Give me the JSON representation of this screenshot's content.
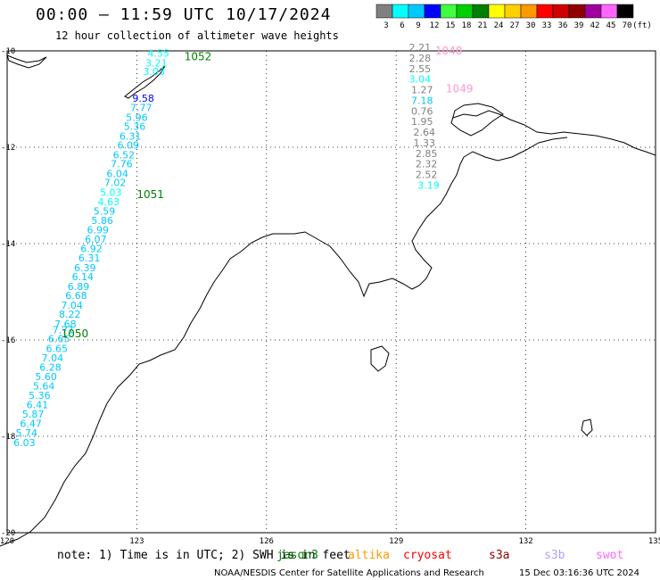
{
  "title": "00:00 — 11:59 UTC 10/17/2024",
  "subtitle": "12 hour collection of altimeter wave heights",
  "colorbar": {
    "unit": "(ft)",
    "bins": [
      {
        "label": "3",
        "color": "#808080"
      },
      {
        "label": "6",
        "color": "#00ffff"
      },
      {
        "label": "9",
        "color": "#00c8ff"
      },
      {
        "label": "12",
        "color": "#0000ff"
      },
      {
        "label": "15",
        "color": "#40ff40"
      },
      {
        "label": "18",
        "color": "#00d000"
      },
      {
        "label": "21",
        "color": "#008000"
      },
      {
        "label": "24",
        "color": "#ffff00"
      },
      {
        "label": "27",
        "color": "#ffd000"
      },
      {
        "label": "30",
        "color": "#ff9900"
      },
      {
        "label": "33",
        "color": "#ff0000"
      },
      {
        "label": "36",
        "color": "#d00000"
      },
      {
        "label": "39",
        "color": "#900000"
      },
      {
        "label": "42",
        "color": "#a000a0"
      },
      {
        "label": "45",
        "color": "#ff66ff"
      },
      {
        "label": "70",
        "color": "#000000"
      }
    ]
  },
  "axes": {
    "lon_ticks": [
      "120",
      "123",
      "126",
      "129",
      "132",
      "135"
    ],
    "lat_ticks": [
      "-10",
      "-12",
      "-14",
      "-16",
      "-18",
      "-20"
    ],
    "lon_range": [
      120,
      135
    ],
    "lat_range": [
      -20,
      -10
    ]
  },
  "pass_labels": [
    {
      "text": "1052",
      "color": "#008000",
      "lon": 124.1,
      "lat": -10.12
    },
    {
      "text": "1051",
      "color": "#008000",
      "lon": 123.0,
      "lat": -12.98
    },
    {
      "text": "1050",
      "color": "#008000",
      "lon": 121.25,
      "lat": -15.87
    },
    {
      "text": "1048",
      "color": "#ff99cc",
      "lon": 129.9,
      "lat": -10.0
    },
    {
      "text": "1049",
      "color": "#ff99cc",
      "lon": 130.15,
      "lat": -10.79
    }
  ],
  "tracks": [
    {
      "name": "west-pass",
      "points": [
        {
          "value": "4.55",
          "color": "#00ffff",
          "lon": 123.5,
          "lat": -10.12
        },
        {
          "value": "3.21",
          "color": "#00ffff",
          "lon": 123.45,
          "lat": -10.32
        },
        {
          "value": "3.03",
          "color": "#00ffff",
          "lon": 123.4,
          "lat": -10.5
        },
        {
          "value": "9.58",
          "color": "#0000ff",
          "lon": 123.15,
          "lat": -11.06
        },
        {
          "value": "7.77",
          "color": "#00c8ff",
          "lon": 123.1,
          "lat": -11.25
        },
        {
          "value": "5.96",
          "color": "#00c8ff",
          "lon": 123.0,
          "lat": -11.45
        },
        {
          "value": "5.36",
          "color": "#00c8ff",
          "lon": 122.95,
          "lat": -11.64
        },
        {
          "value": "6.31",
          "color": "#00c8ff",
          "lon": 122.85,
          "lat": -11.84
        },
        {
          "value": "6.09",
          "color": "#00c8ff",
          "lon": 122.8,
          "lat": -12.03
        },
        {
          "value": "6.52",
          "color": "#00c8ff",
          "lon": 122.7,
          "lat": -12.23
        },
        {
          "value": "7.76",
          "color": "#00c8ff",
          "lon": 122.65,
          "lat": -12.42
        },
        {
          "value": "6.04",
          "color": "#00c8ff",
          "lon": 122.55,
          "lat": -12.62
        },
        {
          "value": "7.02",
          "color": "#00c8ff",
          "lon": 122.5,
          "lat": -12.81
        },
        {
          "value": "5.03",
          "color": "#00ffff",
          "lon": 122.4,
          "lat": -13.01
        },
        {
          "value": "4.63",
          "color": "#00ffff",
          "lon": 122.35,
          "lat": -13.2
        },
        {
          "value": "5.59",
          "color": "#00c8ff",
          "lon": 122.25,
          "lat": -13.4
        },
        {
          "value": "5.86",
          "color": "#00c8ff",
          "lon": 122.2,
          "lat": -13.59
        },
        {
          "value": "6.99",
          "color": "#00c8ff",
          "lon": 122.1,
          "lat": -13.79
        },
        {
          "value": "6.07",
          "color": "#00c8ff",
          "lon": 122.05,
          "lat": -13.98
        },
        {
          "value": "6.92",
          "color": "#00c8ff",
          "lon": 121.95,
          "lat": -14.18
        },
        {
          "value": "6.31",
          "color": "#00c8ff",
          "lon": 121.9,
          "lat": -14.37
        },
        {
          "value": "6.39",
          "color": "#00c8ff",
          "lon": 121.8,
          "lat": -14.57
        },
        {
          "value": "6.14",
          "color": "#00c8ff",
          "lon": 121.75,
          "lat": -14.76
        },
        {
          "value": "6.89",
          "color": "#00c8ff",
          "lon": 121.65,
          "lat": -14.96
        },
        {
          "value": "6.68",
          "color": "#00c8ff",
          "lon": 121.6,
          "lat": -15.15
        },
        {
          "value": "7.04",
          "color": "#00c8ff",
          "lon": 121.5,
          "lat": -15.35
        },
        {
          "value": "8.22",
          "color": "#00c8ff",
          "lon": 121.45,
          "lat": -15.54
        },
        {
          "value": "7.68",
          "color": "#00c8ff",
          "lon": 121.35,
          "lat": -15.74
        },
        {
          "value": "7.71",
          "color": "#00c8ff",
          "lon": 121.3,
          "lat": -15.86
        },
        {
          "value": "6.65",
          "color": "#00c8ff",
          "lon": 121.2,
          "lat": -16.05
        },
        {
          "value": "6.65",
          "color": "#00c8ff",
          "lon": 121.15,
          "lat": -16.25
        },
        {
          "value": "7.04",
          "color": "#00c8ff",
          "lon": 121.05,
          "lat": -16.44
        },
        {
          "value": "6.28",
          "color": "#00c8ff",
          "lon": 121.0,
          "lat": -16.64
        },
        {
          "value": "5.60",
          "color": "#00c8ff",
          "lon": 120.9,
          "lat": -16.83
        },
        {
          "value": "5.64",
          "color": "#00c8ff",
          "lon": 120.85,
          "lat": -17.03
        },
        {
          "value": "5.36",
          "color": "#00c8ff",
          "lon": 120.75,
          "lat": -17.22
        },
        {
          "value": "6.41",
          "color": "#00c8ff",
          "lon": 120.7,
          "lat": -17.42
        },
        {
          "value": "5.87",
          "color": "#00c8ff",
          "lon": 120.6,
          "lat": -17.61
        },
        {
          "value": "6.47",
          "color": "#00c8ff",
          "lon": 120.55,
          "lat": -17.81
        },
        {
          "value": "5.74",
          "color": "#00c8ff",
          "lon": 120.45,
          "lat": -18.0
        },
        {
          "value": "6.03",
          "color": "#00c8ff",
          "lon": 120.4,
          "lat": -18.2
        }
      ]
    },
    {
      "name": "east-pass",
      "points": [
        {
          "value": "2.21",
          "color": "#808080",
          "lon": 129.55,
          "lat": -10.0
        },
        {
          "value": "2.28",
          "color": "#808080",
          "lon": 129.55,
          "lat": -10.22
        },
        {
          "value": "2.55",
          "color": "#808080",
          "lon": 129.55,
          "lat": -10.44
        },
        {
          "value": "3.04",
          "color": "#00ffff",
          "lon": 129.55,
          "lat": -10.66
        },
        {
          "value": "1.27",
          "color": "#808080",
          "lon": 129.6,
          "lat": -10.88
        },
        {
          "value": "7.18",
          "color": "#00c8ff",
          "lon": 129.6,
          "lat": -11.1
        },
        {
          "value": "0.76",
          "color": "#808080",
          "lon": 129.6,
          "lat": -11.32
        },
        {
          "value": "1.95",
          "color": "#808080",
          "lon": 129.6,
          "lat": -11.54
        },
        {
          "value": "2.64",
          "color": "#808080",
          "lon": 129.65,
          "lat": -11.76
        },
        {
          "value": "1.33",
          "color": "#808080",
          "lon": 129.65,
          "lat": -11.98
        },
        {
          "value": "2.85",
          "color": "#808080",
          "lon": 129.7,
          "lat": -12.2
        },
        {
          "value": "2.32",
          "color": "#808080",
          "lon": 129.7,
          "lat": -12.42
        },
        {
          "value": "2.52",
          "color": "#808080",
          "lon": 129.7,
          "lat": -12.64
        },
        {
          "value": "3.19",
          "color": "#00ffff",
          "lon": 129.75,
          "lat": -12.86
        }
      ]
    }
  ],
  "footer": {
    "note": "note: 1) Time is in UTC; 2) SWH is in feet",
    "missions": [
      {
        "label": "jason3",
        "color": "#008000"
      },
      {
        "label": "altika",
        "color": "#ff9900"
      },
      {
        "label": "cryosat",
        "color": "#ff0000"
      },
      {
        "label": "s3a",
        "color": "#900000"
      },
      {
        "label": "s3b",
        "color": "#b0a0ff"
      },
      {
        "label": "swot",
        "color": "#ff66ff"
      }
    ],
    "credit": "NOAA/NESDIS Center for Satellite Applications and Research",
    "timestamp": "15 Dec 03:16:36 UTC 2024"
  }
}
